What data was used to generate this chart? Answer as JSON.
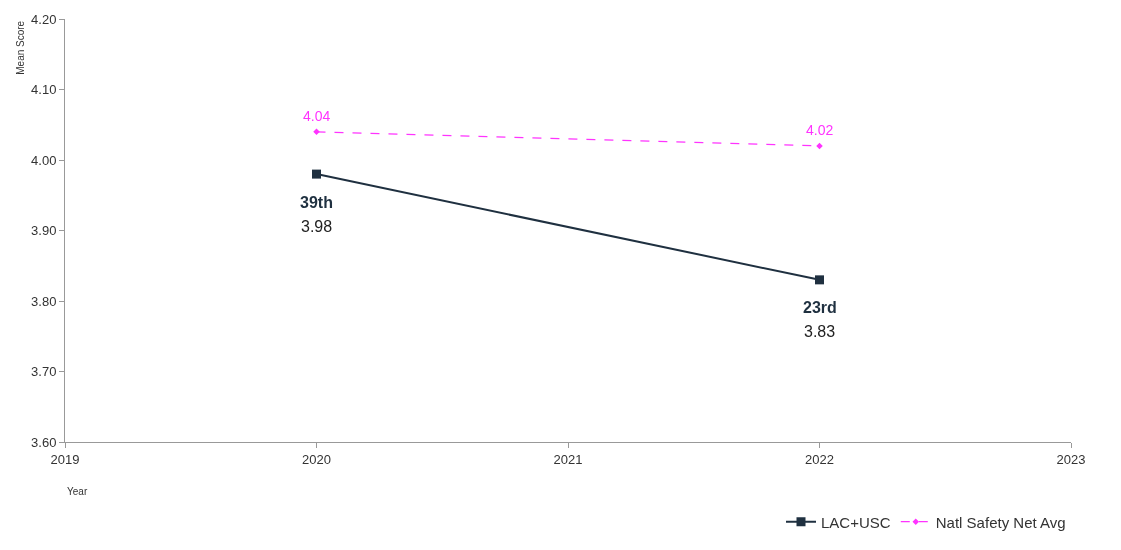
{
  "chart_data": {
    "type": "line",
    "xlabel": "Year",
    "ylabel": "Mean Score",
    "x": [
      2020,
      2022
    ],
    "xlim": [
      2019,
      2023
    ],
    "xticks": [
      2019,
      2020,
      2021,
      2022,
      2023
    ],
    "ylim": [
      3.6,
      4.2
    ],
    "yticks": [
      {
        "value": 3.6,
        "label": "3.60"
      },
      {
        "value": 3.7,
        "label": "3.70"
      },
      {
        "value": 3.8,
        "label": "3.80"
      },
      {
        "value": 3.9,
        "label": "3.90"
      },
      {
        "value": 4.0,
        "label": "4.00"
      },
      {
        "value": 4.1,
        "label": "4.10"
      },
      {
        "value": 4.2,
        "label": "4.20"
      }
    ],
    "series": [
      {
        "name": "LAC+USC",
        "color": "#1f3040",
        "values": [
          3.98,
          3.83
        ],
        "marker": "square",
        "line_style": "solid",
        "value_labels": [
          "3.98",
          "3.83"
        ]
      },
      {
        "name": "Natl Safety Net Avg",
        "color": "#ff33ff",
        "values": [
          4.04,
          4.02
        ],
        "marker": "diamond",
        "line_style": "dashed",
        "value_labels": [
          "4.04",
          "4.02"
        ]
      }
    ],
    "annotations": [
      {
        "text": "39th",
        "x": 2020,
        "y": 3.98
      },
      {
        "text": "23rd",
        "x": 2022,
        "y": 3.83
      }
    ],
    "legend": "bottom right"
  }
}
